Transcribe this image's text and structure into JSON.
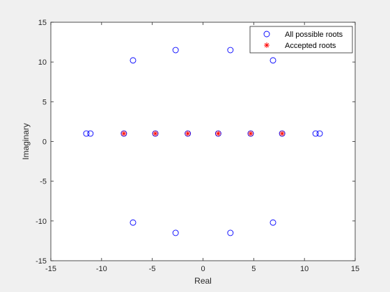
{
  "chart_data": {
    "type": "scatter",
    "title": "",
    "xlabel": "Real",
    "ylabel": "Imaginary",
    "xlim": [
      -15,
      15
    ],
    "ylim": [
      -15,
      15
    ],
    "xticks": [
      -15,
      -10,
      -5,
      0,
      5,
      10,
      15
    ],
    "yticks": [
      -15,
      -10,
      -5,
      0,
      5,
      10,
      15
    ],
    "grid": false,
    "legend_position": "top-right",
    "series": [
      {
        "name": "All possible roots",
        "marker": "circle",
        "color": "#0000ff",
        "points": [
          [
            -6.9,
            10.2
          ],
          [
            -2.7,
            11.5
          ],
          [
            2.7,
            11.5
          ],
          [
            6.9,
            10.2
          ],
          [
            -11.5,
            1.0
          ],
          [
            -11.1,
            1.0
          ],
          [
            -7.8,
            1.0
          ],
          [
            -4.7,
            1.0
          ],
          [
            -1.5,
            1.0
          ],
          [
            1.5,
            1.0
          ],
          [
            4.7,
            1.0
          ],
          [
            7.8,
            1.0
          ],
          [
            11.1,
            1.0
          ],
          [
            11.5,
            1.0
          ],
          [
            -6.9,
            -10.2
          ],
          [
            -2.7,
            -11.5
          ],
          [
            2.7,
            -11.5
          ],
          [
            6.9,
            -10.2
          ]
        ]
      },
      {
        "name": "Accepted roots",
        "marker": "asterisk",
        "color": "#ff0000",
        "points": [
          [
            -7.8,
            1.0
          ],
          [
            -4.7,
            1.0
          ],
          [
            -1.5,
            1.0
          ],
          [
            1.5,
            1.0
          ],
          [
            4.7,
            1.0
          ],
          [
            7.8,
            1.0
          ]
        ]
      }
    ]
  }
}
